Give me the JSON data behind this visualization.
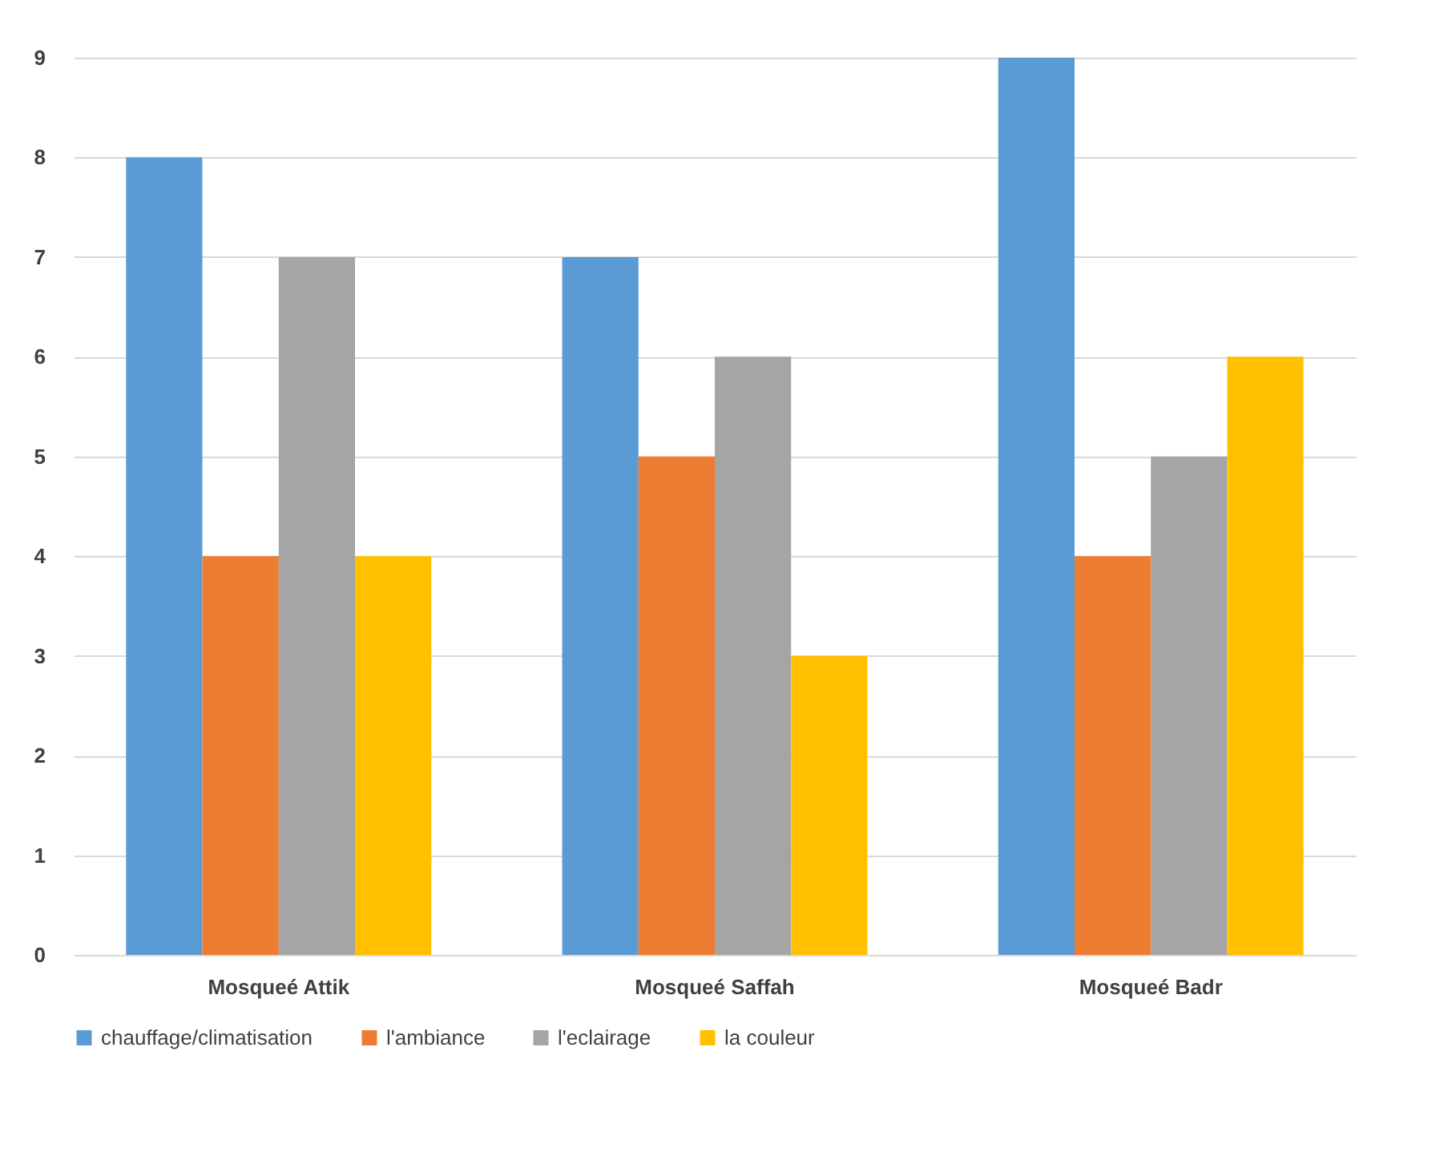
{
  "chart_data": {
    "type": "bar",
    "categories": [
      "Mosqueé Attik",
      "Mosqueé Saffah",
      "Mosqueé Badr"
    ],
    "series": [
      {
        "name": "chauffage/climatisation",
        "color": "#5b9bd5",
        "values": [
          8,
          7,
          9
        ]
      },
      {
        "name": "l'ambiance",
        "color": "#ed7d31",
        "values": [
          4,
          5,
          4
        ]
      },
      {
        "name": "l'eclairage",
        "color": "#a5a5a5",
        "values": [
          7,
          6,
          5
        ]
      },
      {
        "name": "la couleur",
        "color": "#ffc000",
        "values": [
          4,
          3,
          6
        ]
      }
    ],
    "ylim": [
      0,
      9
    ],
    "yticks": [
      0,
      1,
      2,
      3,
      4,
      5,
      6,
      7,
      8,
      9
    ],
    "grid": "y",
    "legend": "bottom"
  }
}
